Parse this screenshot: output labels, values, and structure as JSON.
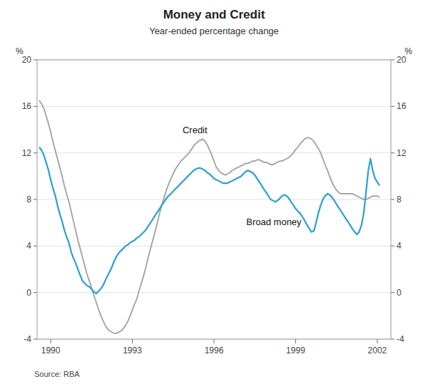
{
  "chart_data": {
    "type": "line",
    "title": "Money and Credit",
    "subtitle": "Year-ended percentage change",
    "y_label": "%",
    "y2_label": "%",
    "source": "Source: RBA",
    "grid": true,
    "xlim": [
      1989.5,
      2002.5
    ],
    "xticks": [
      1990,
      1993,
      1996,
      1999,
      2002
    ],
    "ylim": [
      -4,
      20
    ],
    "yticks": [
      -4,
      0,
      4,
      8,
      12,
      16,
      20
    ],
    "y2lim": [
      -4,
      20
    ],
    "y2ticks": [
      -4,
      0,
      4,
      8,
      12,
      16,
      20
    ],
    "x": [
      1989.58,
      1989.67,
      1989.75,
      1989.83,
      1989.92,
      1990.0,
      1990.08,
      1990.17,
      1990.25,
      1990.33,
      1990.42,
      1990.5,
      1990.58,
      1990.67,
      1990.75,
      1990.83,
      1990.92,
      1991.0,
      1991.08,
      1991.17,
      1991.25,
      1991.33,
      1991.42,
      1991.5,
      1991.58,
      1991.67,
      1991.75,
      1991.83,
      1991.92,
      1992.0,
      1992.08,
      1992.17,
      1992.25,
      1992.33,
      1992.42,
      1992.5,
      1992.58,
      1992.67,
      1992.75,
      1992.83,
      1992.92,
      1993.0,
      1993.08,
      1993.17,
      1993.25,
      1993.33,
      1993.42,
      1993.5,
      1993.58,
      1993.67,
      1993.75,
      1993.83,
      1993.92,
      1994.0,
      1994.08,
      1994.17,
      1994.25,
      1994.33,
      1994.42,
      1994.5,
      1994.58,
      1994.67,
      1994.75,
      1994.83,
      1994.92,
      1995.0,
      1995.08,
      1995.17,
      1995.25,
      1995.33,
      1995.42,
      1995.5,
      1995.58,
      1995.67,
      1995.75,
      1995.83,
      1995.92,
      1996.0,
      1996.08,
      1996.17,
      1996.25,
      1996.33,
      1996.42,
      1996.5,
      1996.58,
      1996.67,
      1996.75,
      1996.83,
      1996.92,
      1997.0,
      1997.08,
      1997.17,
      1997.25,
      1997.33,
      1997.42,
      1997.5,
      1997.58,
      1997.67,
      1997.75,
      1997.83,
      1997.92,
      1998.0,
      1998.08,
      1998.17,
      1998.25,
      1998.33,
      1998.42,
      1998.5,
      1998.58,
      1998.67,
      1998.75,
      1998.83,
      1998.92,
      1999.0,
      1999.08,
      1999.17,
      1999.25,
      1999.33,
      1999.42,
      1999.5,
      1999.58,
      1999.67,
      1999.75,
      1999.83,
      1999.92,
      2000.0,
      2000.08,
      2000.17,
      2000.25,
      2000.33,
      2000.42,
      2000.5,
      2000.58,
      2000.67,
      2000.75,
      2000.83,
      2000.92,
      2001.0,
      2001.08,
      2001.17,
      2001.25,
      2001.33,
      2001.42,
      2001.5,
      2001.58,
      2001.67,
      2001.75,
      2001.83,
      2001.92,
      2002.0,
      2002.08
    ],
    "series": [
      {
        "color": "#a0a0a0",
        "values": [
          16.5,
          16.2,
          15.8,
          15.2,
          14.5,
          13.8,
          13.0,
          12.2,
          11.5,
          10.8,
          10.0,
          9.2,
          8.5,
          7.8,
          7.0,
          6.2,
          5.3,
          4.5,
          3.8,
          3.0,
          2.3,
          1.6,
          1.0,
          0.4,
          -0.2,
          -0.8,
          -1.4,
          -1.9,
          -2.4,
          -2.8,
          -3.1,
          -3.3,
          -3.4,
          -3.5,
          -3.5,
          -3.4,
          -3.3,
          -3.1,
          -2.8,
          -2.5,
          -2.0,
          -1.5,
          -1.0,
          -0.5,
          0.2,
          0.8,
          1.5,
          2.2,
          3.0,
          3.8,
          4.5,
          5.2,
          6.0,
          6.8,
          7.5,
          8.2,
          8.8,
          9.3,
          9.8,
          10.2,
          10.6,
          10.9,
          11.2,
          11.4,
          11.6,
          11.8,
          12.0,
          12.3,
          12.6,
          12.8,
          13.0,
          13.1,
          13.2,
          13.0,
          12.7,
          12.3,
          11.8,
          11.3,
          10.8,
          10.5,
          10.3,
          10.2,
          10.1,
          10.2,
          10.3,
          10.5,
          10.6,
          10.7,
          10.8,
          10.9,
          11.0,
          11.1,
          11.1,
          11.2,
          11.3,
          11.3,
          11.4,
          11.4,
          11.3,
          11.2,
          11.2,
          11.1,
          11.0,
          11.0,
          11.1,
          11.2,
          11.3,
          11.3,
          11.4,
          11.5,
          11.6,
          11.8,
          12.0,
          12.3,
          12.5,
          12.8,
          13.0,
          13.2,
          13.3,
          13.3,
          13.2,
          13.0,
          12.7,
          12.4,
          12.0,
          11.5,
          11.0,
          10.5,
          10.0,
          9.5,
          9.1,
          8.8,
          8.6,
          8.5,
          8.5,
          8.5,
          8.5,
          8.5,
          8.5,
          8.4,
          8.3,
          8.2,
          8.1,
          8.0,
          8.0,
          8.1,
          8.2,
          8.3,
          8.3,
          8.3,
          8.2
        ]
      },
      {
        "color": "#2b9fd4",
        "values": [
          12.5,
          12.2,
          11.8,
          11.2,
          10.5,
          9.7,
          9.0,
          8.3,
          7.5,
          6.8,
          6.1,
          5.4,
          4.8,
          4.3,
          3.5,
          3.0,
          2.5,
          2.0,
          1.5,
          1.0,
          0.8,
          0.6,
          0.5,
          0.3,
          0.1,
          -0.1,
          0.1,
          0.3,
          0.6,
          1.0,
          1.4,
          1.8,
          2.2,
          2.7,
          3.1,
          3.4,
          3.6,
          3.8,
          4.0,
          4.1,
          4.3,
          4.4,
          4.5,
          4.7,
          4.8,
          5.0,
          5.2,
          5.4,
          5.7,
          6.0,
          6.3,
          6.6,
          6.9,
          7.2,
          7.5,
          7.8,
          8.1,
          8.3,
          8.5,
          8.7,
          8.9,
          9.1,
          9.3,
          9.5,
          9.7,
          9.9,
          10.1,
          10.3,
          10.5,
          10.6,
          10.7,
          10.7,
          10.6,
          10.5,
          10.3,
          10.2,
          10.0,
          9.8,
          9.7,
          9.6,
          9.5,
          9.4,
          9.4,
          9.4,
          9.5,
          9.6,
          9.7,
          9.8,
          9.9,
          10.0,
          10.2,
          10.4,
          10.5,
          10.4,
          10.3,
          10.1,
          9.8,
          9.5,
          9.2,
          8.9,
          8.6,
          8.3,
          8.0,
          7.9,
          7.8,
          7.9,
          8.1,
          8.3,
          8.4,
          8.3,
          8.1,
          7.8,
          7.5,
          7.2,
          7.0,
          6.8,
          6.5,
          6.2,
          5.8,
          5.5,
          5.2,
          5.3,
          6.0,
          6.8,
          7.5,
          8.0,
          8.3,
          8.5,
          8.4,
          8.2,
          7.9,
          7.6,
          7.3,
          7.0,
          6.7,
          6.4,
          6.1,
          5.8,
          5.5,
          5.2,
          5.0,
          5.2,
          5.8,
          6.8,
          8.5,
          10.5,
          11.5,
          10.5,
          9.8,
          9.5,
          9.2
        ]
      }
    ],
    "annotations": [
      {
        "text": "Credit",
        "x": 1995.3,
        "y": 13.5
      },
      {
        "text": "Broad money",
        "x": 1998.2,
        "y": 5.6
      }
    ]
  }
}
